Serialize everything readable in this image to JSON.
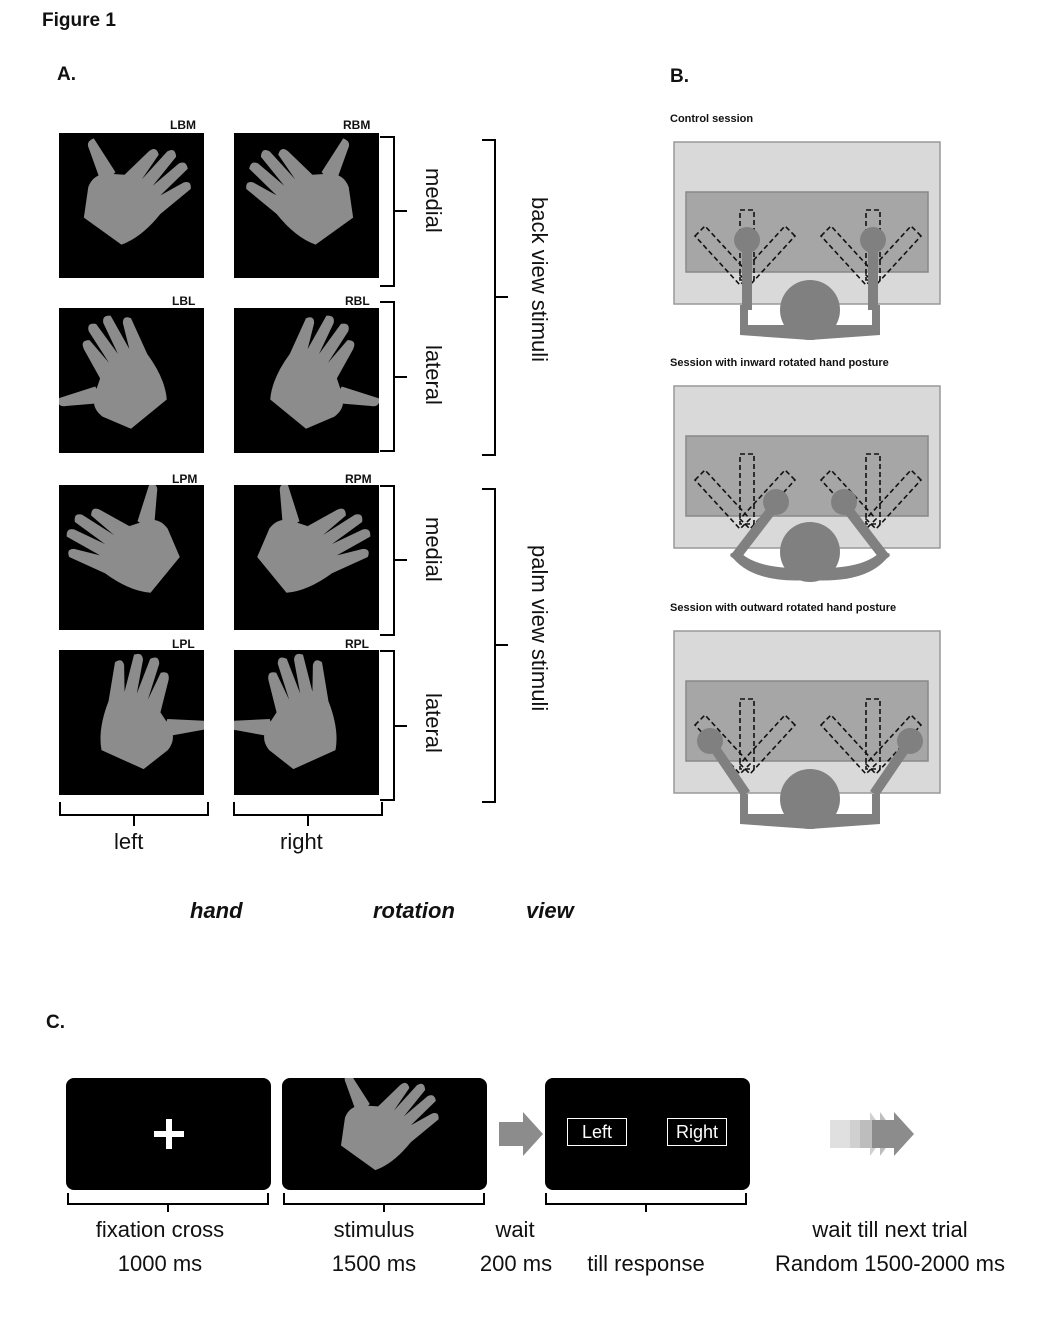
{
  "figure_title": "Figure 1",
  "panels": {
    "a": "A.",
    "b": "B.",
    "c": "C."
  },
  "panel_a": {
    "codes": [
      "LBM",
      "RBM",
      "LBL",
      "RBL",
      "LPM",
      "RPM",
      "LPL",
      "RPL"
    ],
    "rotation_labels": {
      "medial": "medial",
      "lateral": "lateral"
    },
    "view_labels": {
      "back": "back view stimuli",
      "palm": "palm view stimuli"
    },
    "hand_labels": {
      "left": "left",
      "right": "right"
    },
    "factors": {
      "hand": "hand",
      "rotation": "rotation",
      "view": "view"
    }
  },
  "panel_b": {
    "sessions": [
      "Control session",
      "Session with inward rotated hand posture",
      "Session with outward rotated hand posture"
    ]
  },
  "panel_c": {
    "response_left": "Left",
    "response_right": "Right",
    "steps": {
      "fixation": "fixation cross",
      "fixation_time": "1000 ms",
      "stimulus": "stimulus",
      "stimulus_time": "1500 ms",
      "wait": "wait",
      "wait_time": "200 ms",
      "response": "till response",
      "next": "wait till next trial",
      "next_time": "Random 1500-2000 ms"
    }
  },
  "colors": {
    "hand": "#8c8c8c",
    "panel_outer": "#d9d9d9",
    "panel_inner": "#a6a6a6",
    "body": "#808080"
  }
}
